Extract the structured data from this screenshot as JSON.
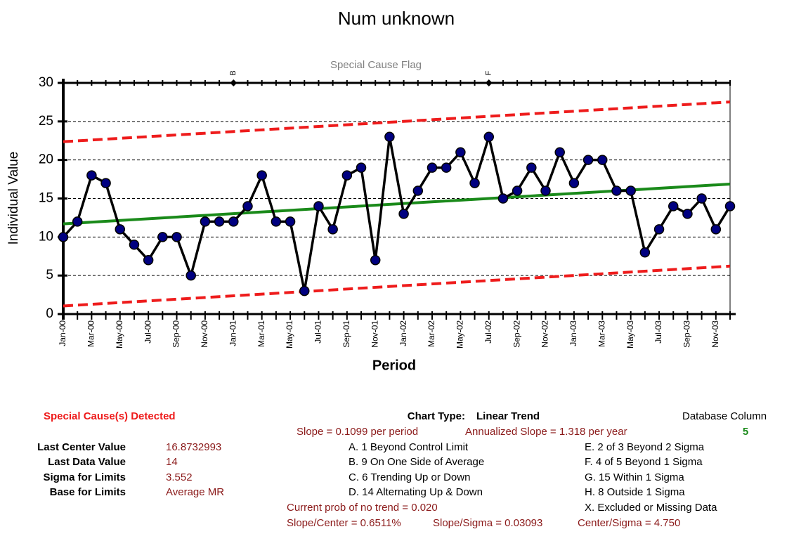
{
  "chart_data": {
    "type": "line",
    "title": "Num unknown",
    "subtitle": "Special Cause Flag",
    "y_label": "Individual Value",
    "x_label": "Period",
    "categories": [
      "Jan-00",
      null,
      "Mar-00",
      null,
      "May-00",
      null,
      "Jul-00",
      null,
      "Sep-00",
      null,
      "Nov-00",
      null,
      "Jan-01",
      null,
      "Mar-01",
      null,
      "May-01",
      null,
      "Jul-01",
      null,
      "Sep-01",
      null,
      "Nov-01",
      null,
      "Jan-02",
      null,
      "Mar-02",
      null,
      "May-02",
      null,
      "Jul-02",
      null,
      "Sep-02",
      null,
      "Nov-02",
      null,
      "Jan-03",
      null,
      "Mar-03",
      null,
      "May-03",
      null,
      "Jul-03",
      null,
      "Sep-03",
      null,
      "Nov-03",
      null
    ],
    "values": [
      10,
      12,
      18,
      17,
      11,
      9,
      7,
      10,
      10,
      5,
      12,
      12,
      12,
      14,
      18,
      12,
      12,
      3,
      14,
      11,
      18,
      19,
      7,
      23,
      13,
      16,
      19,
      19,
      21,
      17,
      23,
      15,
      16,
      19,
      16,
      21,
      17,
      20,
      20,
      16,
      16,
      8,
      11,
      14,
      13,
      15,
      11,
      14
    ],
    "color": "#000000",
    "marker_color": "#000080",
    "center_line": {
      "values": [
        11.71,
        16.87
      ],
      "color": "#1a8a1a"
    },
    "upper_limit": {
      "values": [
        22.37,
        27.53
      ],
      "color": "#ee1c1c"
    },
    "lower_limit": {
      "values": [
        1.05,
        6.22
      ],
      "color": "#ee1c1c"
    },
    "flags": [
      {
        "category": "Jan-01",
        "label": "B"
      },
      {
        "category": "Jul-02",
        "label": "F"
      }
    ],
    "ylim": [
      0,
      30
    ],
    "yticks": [
      0,
      5,
      10,
      15,
      20,
      25,
      30
    ],
    "grid": true
  },
  "summary": {
    "detected": "Special Cause(s) Detected",
    "chart_type_label": "Chart Type:",
    "chart_type": "Linear Trend",
    "database_column_label": "Database Column",
    "database_column": "5",
    "slope": "Slope = 0.1099 per period",
    "annualized_slope": "Annualized Slope = 1.318 per year",
    "stats": [
      [
        "Last Center Value",
        "16.8732993"
      ],
      [
        "Last Data Value",
        "14"
      ],
      [
        "Sigma for Limits",
        "3.552"
      ],
      [
        "Base for Limits",
        "Average MR"
      ]
    ],
    "rules_left": [
      "A.  1 Beyond Control Limit",
      "B.  9 On One Side of Average",
      "C.  6 Trending Up or Down",
      "D.  14 Alternating  Up & Down"
    ],
    "rules_right": [
      "E.  2 of 3 Beyond 2 Sigma",
      "F.  4 of 5 Beyond 1 Sigma",
      "G.  15 Within 1 Sigma",
      "H.  8 Outside 1 Sigma",
      "X.  Excluded or Missing Data"
    ],
    "prob": "Current prob of no trend = 0.020",
    "slope_center": "Slope/Center = 0.6511%",
    "slope_sigma": "Slope/Sigma = 0.03093",
    "center_sigma": "Center/Sigma = 4.750"
  }
}
